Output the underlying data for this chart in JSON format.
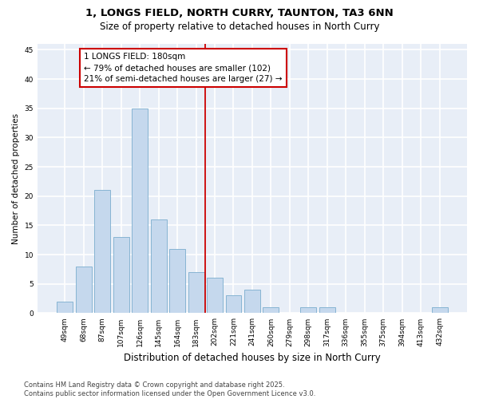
{
  "title": "1, LONGS FIELD, NORTH CURRY, TAUNTON, TA3 6NN",
  "subtitle": "Size of property relative to detached houses in North Curry",
  "xlabel": "Distribution of detached houses by size in North Curry",
  "ylabel": "Number of detached properties",
  "categories": [
    "49sqm",
    "68sqm",
    "87sqm",
    "107sqm",
    "126sqm",
    "145sqm",
    "164sqm",
    "183sqm",
    "202sqm",
    "221sqm",
    "241sqm",
    "260sqm",
    "279sqm",
    "298sqm",
    "317sqm",
    "336sqm",
    "355sqm",
    "375sqm",
    "394sqm",
    "413sqm",
    "432sqm"
  ],
  "values": [
    2,
    8,
    21,
    13,
    35,
    16,
    11,
    7,
    6,
    3,
    4,
    1,
    0,
    1,
    1,
    0,
    0,
    0,
    0,
    0,
    1
  ],
  "bar_color": "#c5d8ed",
  "bar_edge_color": "#7aadce",
  "vline_color": "#cc0000",
  "annotation_text": "1 LONGS FIELD: 180sqm\n← 79% of detached houses are smaller (102)\n21% of semi-detached houses are larger (27) →",
  "annotation_box_color": "#cc0000",
  "ylim": [
    0,
    46
  ],
  "yticks": [
    0,
    5,
    10,
    15,
    20,
    25,
    30,
    35,
    40,
    45
  ],
  "background_color": "#e8eef7",
  "grid_color": "#ffffff",
  "fig_background": "#ffffff",
  "footer": "Contains HM Land Registry data © Crown copyright and database right 2025.\nContains public sector information licensed under the Open Government Licence v3.0.",
  "title_fontsize": 9.5,
  "subtitle_fontsize": 8.5,
  "xlabel_fontsize": 8.5,
  "ylabel_fontsize": 7.5,
  "tick_fontsize": 6.5,
  "annot_fontsize": 7.5,
  "footer_fontsize": 6.0
}
